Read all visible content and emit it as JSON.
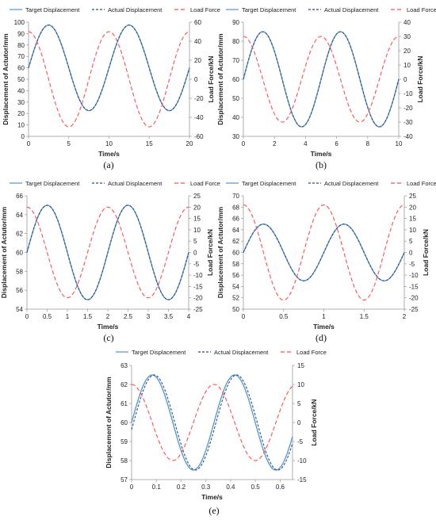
{
  "figure": {
    "legend": {
      "target": "Target Displacement",
      "actual": "Actual Displacement",
      "load": "Load Force"
    },
    "colors": {
      "target": "#5b9bd5",
      "actual": "#2f4f7f",
      "load": "#ff4d4d",
      "axis": "#999999"
    }
  },
  "chart_data": [
    {
      "id": "a",
      "caption": "(a)",
      "type": "line",
      "xlabel": "Time/s",
      "ylabel": "Displacement of Actutor/mm",
      "y2label": "Load Force/kN",
      "xlim": [
        0,
        20
      ],
      "xticks": [
        0,
        5,
        10,
        15,
        20
      ],
      "ylim": [
        0,
        100
      ],
      "yticks": [
        0,
        10,
        20,
        30,
        40,
        50,
        60,
        70,
        80,
        90,
        100
      ],
      "y2lim": [
        -60,
        60
      ],
      "y2ticks": [
        -60,
        -40,
        -20,
        0,
        20,
        40,
        60
      ],
      "series": [
        {
          "name": "Target Displacement",
          "axis": "left",
          "form": "sine",
          "offset": 60,
          "amplitude": 37.5,
          "period": 10,
          "phase": 0
        },
        {
          "name": "Actual Displacement",
          "axis": "left",
          "form": "sine",
          "offset": 60,
          "amplitude": 37.5,
          "period": 10,
          "phase": 0
        },
        {
          "name": "Load Force",
          "axis": "right",
          "form": "cosine",
          "offset": 0,
          "amplitude": 50,
          "period": 10,
          "phase": 0
        }
      ]
    },
    {
      "id": "b",
      "caption": "(b)",
      "type": "line",
      "xlabel": "Time/s",
      "ylabel": "Displacement of Actutor/mm",
      "y2label": "Load Force/kN",
      "xlim": [
        0,
        10
      ],
      "xticks": [
        0,
        2,
        4,
        6,
        8,
        10
      ],
      "ylim": [
        30,
        90
      ],
      "yticks": [
        30,
        40,
        50,
        60,
        70,
        80,
        90
      ],
      "y2lim": [
        -40,
        40
      ],
      "y2ticks": [
        -40,
        -30,
        -20,
        -10,
        0,
        10,
        20,
        30,
        40
      ],
      "series": [
        {
          "name": "Target Displacement",
          "axis": "left",
          "form": "sine",
          "offset": 60,
          "amplitude": 25,
          "period": 5,
          "phase": 0
        },
        {
          "name": "Actual Displacement",
          "axis": "left",
          "form": "sine",
          "offset": 60,
          "amplitude": 25,
          "period": 5,
          "phase": 0
        },
        {
          "name": "Load Force",
          "axis": "right",
          "form": "cosine",
          "offset": 0,
          "amplitude": 30,
          "period": 5,
          "phase": 0
        }
      ]
    },
    {
      "id": "c",
      "caption": "(c)",
      "type": "line",
      "xlabel": "Time/s",
      "ylabel": "Displacement of Actutor/mm",
      "y2label": "Load Force/kN",
      "xlim": [
        0,
        4
      ],
      "xticks": [
        0,
        0.5,
        1,
        1.5,
        2,
        2.5,
        3,
        3.5,
        4
      ],
      "ylim": [
        54,
        66
      ],
      "yticks": [
        54,
        56,
        58,
        60,
        62,
        64,
        66
      ],
      "y2lim": [
        -25,
        25
      ],
      "y2ticks": [
        -25,
        -20,
        -15,
        -10,
        -5,
        0,
        5,
        10,
        15,
        20,
        25
      ],
      "series": [
        {
          "name": "Target Displacement",
          "axis": "left",
          "form": "sine",
          "offset": 60,
          "amplitude": 5,
          "period": 2,
          "phase": 0
        },
        {
          "name": "Actual Displacement",
          "axis": "left",
          "form": "sine",
          "offset": 60,
          "amplitude": 5,
          "period": 2,
          "phase": 0
        },
        {
          "name": "Load Force",
          "axis": "right",
          "form": "cosine",
          "offset": 0,
          "amplitude": 20,
          "period": 2,
          "phase": 0
        }
      ]
    },
    {
      "id": "d",
      "caption": "(d)",
      "type": "line",
      "xlabel": "Time/s",
      "ylabel": "Displacement of Actutor/mm",
      "y2label": "Load Force/kN",
      "xlim": [
        0,
        2
      ],
      "xticks": [
        0,
        0.5,
        1,
        1.5,
        2
      ],
      "ylim": [
        50,
        70
      ],
      "yticks": [
        50,
        52,
        54,
        56,
        58,
        60,
        62,
        64,
        66,
        68,
        70
      ],
      "y2lim": [
        -25,
        25
      ],
      "y2ticks": [
        -25,
        -20,
        -15,
        -10,
        -5,
        0,
        5,
        10,
        15,
        20,
        25
      ],
      "series": [
        {
          "name": "Target Displacement",
          "axis": "left",
          "form": "sine",
          "offset": 60,
          "amplitude": 5,
          "period": 1,
          "phase": 0
        },
        {
          "name": "Actual Displacement",
          "axis": "left",
          "form": "sine",
          "offset": 60,
          "amplitude": 5,
          "period": 1,
          "phase": 0
        },
        {
          "name": "Load Force",
          "axis": "right",
          "form": "cosine",
          "offset": 0,
          "amplitude": 21,
          "period": 1,
          "phase": 0
        }
      ]
    },
    {
      "id": "e",
      "caption": "(e)",
      "type": "line",
      "xlabel": "Time/s",
      "ylabel": "Displacement of Actutor/mm",
      "y2label": "Load Force/kN",
      "xlim": [
        0,
        0.65
      ],
      "xticks": [
        0,
        0.1,
        0.2,
        0.3,
        0.4,
        0.5,
        0.6
      ],
      "ylim": [
        57,
        63
      ],
      "yticks": [
        57,
        58,
        59,
        60,
        61,
        62,
        63
      ],
      "y2lim": [
        -15,
        15
      ],
      "y2ticks": [
        -15,
        -10,
        -5,
        0,
        5,
        10,
        15
      ],
      "series": [
        {
          "name": "Target Displacement",
          "axis": "left",
          "form": "sine",
          "offset": 60,
          "amplitude": 2.5,
          "period": 0.333,
          "phase": 0
        },
        {
          "name": "Actual Displacement",
          "axis": "left",
          "form": "sine",
          "offset": 60,
          "amplitude": 2.5,
          "period": 0.333,
          "phase": 0.008
        },
        {
          "name": "Load Force",
          "axis": "right",
          "form": "cosine",
          "offset": 0,
          "amplitude": 10,
          "period": 0.333,
          "phase": 0
        }
      ]
    }
  ]
}
